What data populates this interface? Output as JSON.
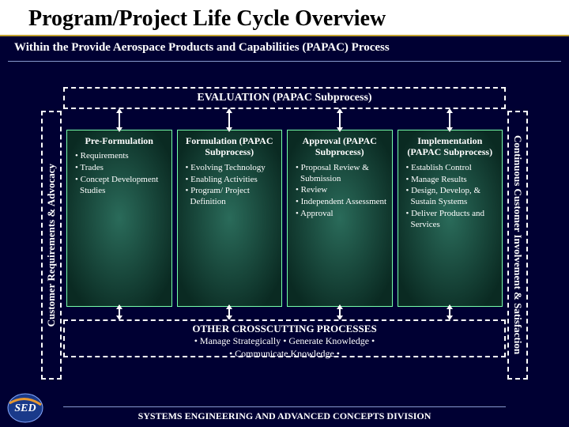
{
  "title": "Program/Project Life Cycle Overview",
  "subtitle": "Within the Provide Aerospace Products and Capabilities (PAPAC) Process",
  "eval_label": "EVALUATION (PAPAC Subprocess)",
  "other_label": "OTHER CROSSCUTTING PROCESSES",
  "other_items": "• Manage Strategically • Generate Knowledge •\n• Communicate Knowledge •",
  "left_rail": "Customer Requirements & Advocacy",
  "right_rail": "Continuous Customer Involvement & Satisfaction",
  "footer": "SYSTEMS ENGINEERING AND ADVANCED CONCEPTS DIVISION",
  "logo_text": "SED",
  "colors": {
    "page_bg": "#000033",
    "title_text": "#000000",
    "title_underline": "#c0a030",
    "text": "#ffffff",
    "dash_border": "#ffffff",
    "divider": "#8899cc",
    "phase_border": "#7fa",
    "phase_bg_center": "#2a6b5a",
    "phase_bg_edge": "#0a2a22",
    "logo_bg": "#1a3a8a",
    "logo_orange": "#e89830"
  },
  "phases": [
    {
      "title": "Pre-Formulation",
      "bullets": [
        "Requirements",
        "Trades",
        "Concept Development Studies"
      ]
    },
    {
      "title": "Formulation (PAPAC Subprocess)",
      "bullets": [
        "Evolving Technology",
        "Enabling Activities",
        "Program/ Project Definition"
      ]
    },
    {
      "title": "Approval (PAPAC Subprocess)",
      "bullets": [
        "Proposal Review & Submission",
        "Review",
        "Independent Assessment",
        "Approval"
      ]
    },
    {
      "title": "Implementation (PAPAC Subprocess)",
      "bullets": [
        "Establish Control",
        "Manage Results",
        "Design, Develop, & Sustain Systems",
        "Deliver Products and Services"
      ]
    }
  ]
}
